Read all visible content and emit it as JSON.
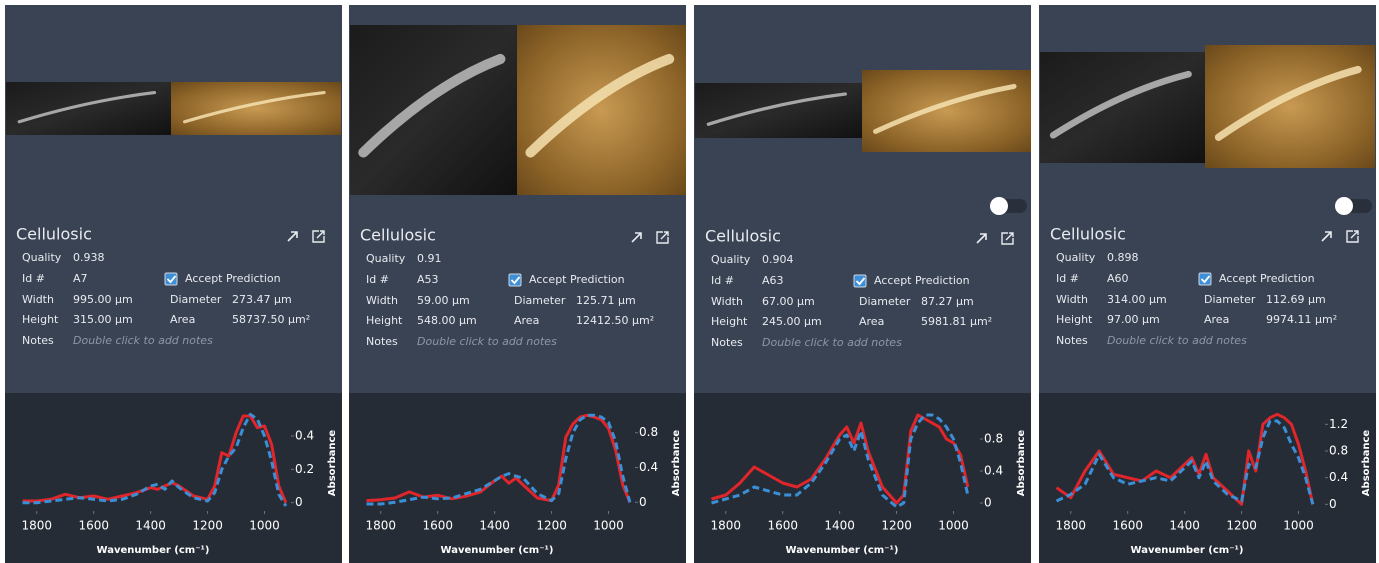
{
  "panels": [
    {
      "title": "Cellulosic",
      "fields": [
        {
          "label": "Quality",
          "value": "0.938"
        },
        {
          "label": "Id #",
          "value": "A7"
        },
        {
          "label": "Width",
          "value": "995.00 µm"
        },
        {
          "label": "Height",
          "value": "315.00 µm"
        },
        {
          "label": "Notes",
          "value": "Double click to add notes"
        }
      ],
      "accept": "Accept Prediction",
      "accepted": true,
      "extra": [
        {
          "label": "Diameter",
          "value": "273.47 µm"
        },
        {
          "label": "Area",
          "value": "58737.50 µm²"
        }
      ],
      "toggle": false,
      "chart": {
        "type": "line",
        "xlabel": "Wavenumber (cm⁻¹)",
        "ylabel": "Absorbance",
        "x": [
          1850,
          1800,
          1750,
          1700,
          1650,
          1600,
          1550,
          1500,
          1450,
          1400,
          1375,
          1350,
          1325,
          1300,
          1250,
          1200,
          1175,
          1150,
          1125,
          1100,
          1075,
          1050,
          1025,
          1000,
          975,
          950,
          925
        ],
        "xlim": [
          1880,
          900
        ],
        "xticks": [
          1800,
          1600,
          1400,
          1200,
          1000
        ],
        "ylim": [
          -0.05,
          0.55
        ],
        "yticks": [
          0,
          0.2,
          0.4
        ],
        "series": [
          {
            "color": "#e0252b",
            "values": [
              0.01,
              0.01,
              0.02,
              0.05,
              0.03,
              0.04,
              0.02,
              0.04,
              0.06,
              0.09,
              0.08,
              0.1,
              0.12,
              0.1,
              0.04,
              0.02,
              0.1,
              0.3,
              0.28,
              0.42,
              0.52,
              0.52,
              0.45,
              0.46,
              0.35,
              0.1,
              0.0
            ]
          },
          {
            "color": "#3b8fd6",
            "dashed": true,
            "values": [
              0.0,
              0.0,
              0.01,
              0.02,
              0.03,
              0.02,
              0.01,
              0.02,
              0.05,
              0.1,
              0.11,
              0.08,
              0.13,
              0.09,
              0.03,
              0.01,
              0.06,
              0.2,
              0.28,
              0.33,
              0.45,
              0.53,
              0.5,
              0.4,
              0.25,
              0.05,
              -0.02
            ]
          }
        ]
      }
    },
    {
      "title": "Cellulosic",
      "fields": [
        {
          "label": "Quality",
          "value": "0.91"
        },
        {
          "label": "Id #",
          "value": "A53"
        },
        {
          "label": "Width",
          "value": "59.00 µm"
        },
        {
          "label": "Height",
          "value": "548.00 µm"
        },
        {
          "label": "Notes",
          "value": "Double click to add notes"
        }
      ],
      "accept": "Accept Prediction",
      "accepted": true,
      "extra": [
        {
          "label": "Diameter",
          "value": "125.71 µm"
        },
        {
          "label": "Area",
          "value": "12412.50 µm²"
        }
      ],
      "toggle": false,
      "chart": {
        "type": "line",
        "xlabel": "Wavenumber (cm⁻¹)",
        "ylabel": "Absorbance",
        "x": [
          1850,
          1800,
          1750,
          1700,
          1650,
          1600,
          1550,
          1500,
          1450,
          1400,
          1375,
          1350,
          1325,
          1300,
          1250,
          1200,
          1175,
          1150,
          1125,
          1100,
          1075,
          1050,
          1025,
          1000,
          975,
          950,
          925
        ],
        "xlim": [
          1880,
          900
        ],
        "xticks": [
          1800,
          1600,
          1400,
          1200,
          1000
        ],
        "ylim": [
          -0.1,
          1.05
        ],
        "yticks": [
          0,
          0.4,
          0.8
        ],
        "series": [
          {
            "color": "#e0252b",
            "values": [
              0.02,
              0.03,
              0.05,
              0.12,
              0.06,
              0.08,
              0.04,
              0.07,
              0.12,
              0.25,
              0.3,
              0.22,
              0.28,
              0.2,
              0.05,
              0.02,
              0.2,
              0.75,
              0.9,
              0.98,
              1.0,
              0.98,
              0.95,
              0.85,
              0.6,
              0.2,
              0.0
            ]
          },
          {
            "color": "#3b8fd6",
            "dashed": true,
            "values": [
              -0.02,
              -0.02,
              0.0,
              0.03,
              0.06,
              0.04,
              0.05,
              0.1,
              0.15,
              0.25,
              0.3,
              0.33,
              0.3,
              0.28,
              0.1,
              0.02,
              0.1,
              0.5,
              0.8,
              0.95,
              1.0,
              1.0,
              0.98,
              0.92,
              0.7,
              0.3,
              0.0
            ]
          }
        ]
      }
    },
    {
      "title": "Cellulosic",
      "fields": [
        {
          "label": "Quality",
          "value": "0.904"
        },
        {
          "label": "Id #",
          "value": "A63"
        },
        {
          "label": "Width",
          "value": "67.00 µm"
        },
        {
          "label": "Height",
          "value": "245.00 µm"
        },
        {
          "label": "Notes",
          "value": "Double click to add notes"
        }
      ],
      "accept": "Accept Prediction",
      "accepted": true,
      "extra": [
        {
          "label": "Diameter",
          "value": "87.27 µm"
        },
        {
          "label": "Area",
          "value": "5981.81 µm²"
        }
      ],
      "toggle": true,
      "chart": {
        "type": "line",
        "xlabel": "Wavenumber (cm⁻¹)",
        "ylabel": "Absorbance",
        "x": [
          1850,
          1800,
          1750,
          1700,
          1650,
          1600,
          1550,
          1500,
          1450,
          1400,
          1375,
          1350,
          1325,
          1300,
          1250,
          1200,
          1175,
          1150,
          1125,
          1100,
          1075,
          1050,
          1025,
          1000,
          975,
          950,
          925
        ],
        "xlim": [
          1880,
          900
        ],
        "xticks": [
          1800,
          1600,
          1400,
          1200,
          1000
        ],
        "ylim": [
          -0.1,
          1.15
        ],
        "yticks": [
          0,
          0.4,
          0.8
        ],
        "series": [
          {
            "color": "#e0252b",
            "values": [
              0.05,
              0.1,
              0.25,
              0.45,
              0.35,
              0.25,
              0.2,
              0.3,
              0.55,
              0.85,
              0.95,
              0.75,
              1.0,
              0.65,
              0.2,
              0.0,
              0.1,
              0.9,
              1.1,
              1.05,
              1.0,
              0.95,
              0.8,
              0.75,
              0.6,
              0.2,
              null
            ]
          },
          {
            "color": "#3b8fd6",
            "dashed": true,
            "values": [
              0.0,
              0.05,
              0.1,
              0.2,
              0.15,
              0.1,
              0.1,
              0.25,
              0.5,
              0.8,
              0.85,
              0.65,
              0.9,
              0.55,
              0.1,
              -0.05,
              0.0,
              0.8,
              1.0,
              1.1,
              1.1,
              1.05,
              0.95,
              0.8,
              0.5,
              0.1,
              null
            ]
          }
        ]
      }
    },
    {
      "title": "Cellulosic",
      "fields": [
        {
          "label": "Quality",
          "value": "0.898"
        },
        {
          "label": "Id #",
          "value": "A60"
        },
        {
          "label": "Width",
          "value": "314.00 µm"
        },
        {
          "label": "Height",
          "value": "97.00 µm"
        },
        {
          "label": "Notes",
          "value": "Double click to add notes"
        }
      ],
      "accept": "Accept Prediction",
      "accepted": true,
      "extra": [
        {
          "label": "Diameter",
          "value": "112.69 µm"
        },
        {
          "label": "Area",
          "value": "9974.11 µm²"
        }
      ],
      "toggle": true,
      "chart": {
        "type": "line",
        "xlabel": "Wavenumber (cm⁻¹)",
        "ylabel": "Absorbance",
        "x": [
          1850,
          1800,
          1750,
          1700,
          1650,
          1600,
          1550,
          1500,
          1450,
          1400,
          1375,
          1350,
          1325,
          1300,
          1250,
          1200,
          1175,
          1150,
          1125,
          1100,
          1075,
          1050,
          1025,
          1000,
          975,
          950,
          925
        ],
        "xlim": [
          1880,
          900
        ],
        "xticks": [
          1800,
          1600,
          1400,
          1200,
          1000
        ],
        "ylim": [
          -0.1,
          1.4
        ],
        "yticks": [
          0,
          0.4,
          0.8,
          1.2
        ],
        "series": [
          {
            "color": "#e0252b",
            "values": [
              0.25,
              0.1,
              0.5,
              0.8,
              0.45,
              0.4,
              0.35,
              0.5,
              0.4,
              0.6,
              0.7,
              0.45,
              0.75,
              0.4,
              0.2,
              0.0,
              0.8,
              0.5,
              1.2,
              1.3,
              1.35,
              1.3,
              1.2,
              0.9,
              0.5,
              0.0,
              null
            ]
          },
          {
            "color": "#3b8fd6",
            "dashed": true,
            "values": [
              0.05,
              0.15,
              0.3,
              0.75,
              0.4,
              0.3,
              0.35,
              0.4,
              0.35,
              0.55,
              0.65,
              0.4,
              0.65,
              0.35,
              0.15,
              0.05,
              0.6,
              0.55,
              1.0,
              1.25,
              1.25,
              1.15,
              0.9,
              0.7,
              0.4,
              0.0,
              null
            ]
          }
        ]
      }
    }
  ]
}
